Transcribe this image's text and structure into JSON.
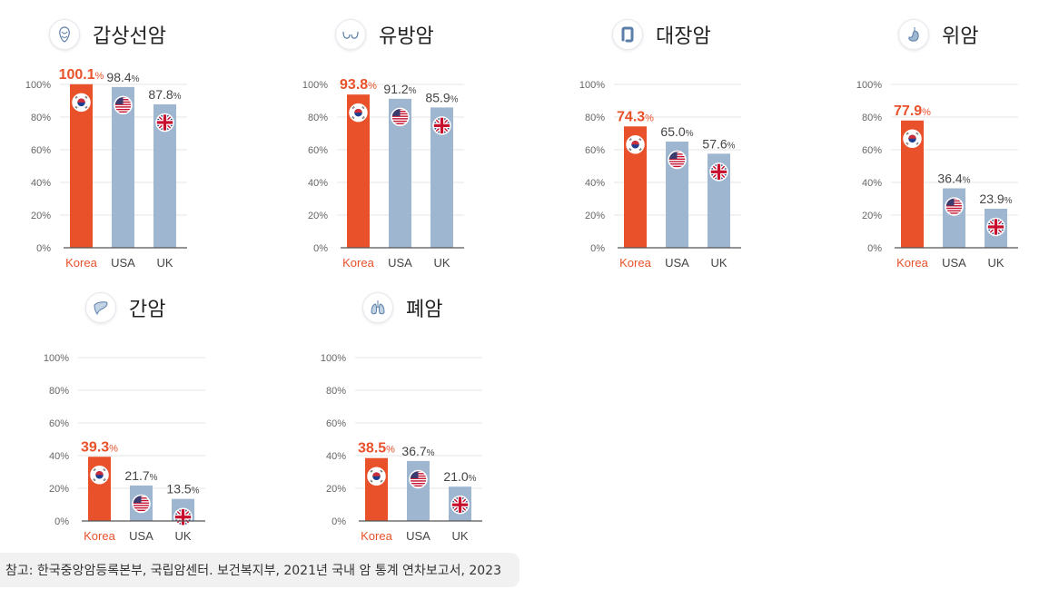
{
  "colors": {
    "korea_bar": "#e8512a",
    "other_bar": "#9fb6d0",
    "grid": "#e5e5e5",
    "axis": "#555555"
  },
  "chart_data": [
    {
      "type": "bar",
      "title": "갑상선암",
      "icon": "thyroid-icon",
      "categories": [
        "Korea",
        "USA",
        "UK"
      ],
      "values": [
        100.1,
        98.4,
        87.8
      ],
      "value_labels": [
        "100.1",
        "98.4",
        "87.8"
      ],
      "unit": "%",
      "ylim": [
        0,
        100
      ],
      "yticks": [
        "0%",
        "20%",
        "40%",
        "60%",
        "80%",
        "100%"
      ],
      "flags": [
        "korea-flag-icon",
        "usa-flag-icon",
        "uk-flag-icon"
      ]
    },
    {
      "type": "bar",
      "title": "유방암",
      "icon": "breast-icon",
      "categories": [
        "Korea",
        "USA",
        "UK"
      ],
      "values": [
        93.8,
        91.2,
        85.9
      ],
      "value_labels": [
        "93.8",
        "91.2",
        "85.9"
      ],
      "unit": "%",
      "ylim": [
        0,
        100
      ],
      "yticks": [
        "0%",
        "20%",
        "40%",
        "60%",
        "80%",
        "100%"
      ],
      "flags": [
        "korea-flag-icon",
        "usa-flag-icon",
        "uk-flag-icon"
      ]
    },
    {
      "type": "bar",
      "title": "대장암",
      "icon": "colon-icon",
      "categories": [
        "Korea",
        "USA",
        "UK"
      ],
      "values": [
        74.3,
        65.0,
        57.6
      ],
      "value_labels": [
        "74.3",
        "65.0",
        "57.6"
      ],
      "unit": "%",
      "ylim": [
        0,
        100
      ],
      "yticks": [
        "0%",
        "20%",
        "40%",
        "60%",
        "80%",
        "100%"
      ],
      "flags": [
        "korea-flag-icon",
        "usa-flag-icon",
        "uk-flag-icon"
      ]
    },
    {
      "type": "bar",
      "title": "위암",
      "icon": "stomach-icon",
      "categories": [
        "Korea",
        "USA",
        "UK"
      ],
      "values": [
        77.9,
        36.4,
        23.9
      ],
      "value_labels": [
        "77.9",
        "36.4",
        "23.9"
      ],
      "unit": "%",
      "ylim": [
        0,
        100
      ],
      "yticks": [
        "0%",
        "20%",
        "40%",
        "60%",
        "80%",
        "100%"
      ],
      "flags": [
        "korea-flag-icon",
        "usa-flag-icon",
        "uk-flag-icon"
      ]
    },
    {
      "type": "bar",
      "title": "간암",
      "icon": "liver-icon",
      "categories": [
        "Korea",
        "USA",
        "UK"
      ],
      "values": [
        39.3,
        21.7,
        13.5
      ],
      "value_labels": [
        "39.3",
        "21.7",
        "13.5"
      ],
      "unit": "%",
      "ylim": [
        0,
        100
      ],
      "yticks": [
        "0%",
        "20%",
        "40%",
        "60%",
        "80%",
        "100%"
      ],
      "flags": [
        "korea-flag-icon",
        "usa-flag-icon",
        "uk-flag-icon"
      ]
    },
    {
      "type": "bar",
      "title": "폐암",
      "icon": "lung-icon",
      "categories": [
        "Korea",
        "USA",
        "UK"
      ],
      "values": [
        38.5,
        36.7,
        21.0
      ],
      "value_labels": [
        "38.5",
        "36.7",
        "21.0"
      ],
      "unit": "%",
      "ylim": [
        0,
        100
      ],
      "yticks": [
        "0%",
        "20%",
        "40%",
        "60%",
        "80%",
        "100%"
      ],
      "flags": [
        "korea-flag-icon",
        "usa-flag-icon",
        "uk-flag-icon"
      ]
    }
  ],
  "source": "참고: 한국중앙암등록본부, 국립암센터. 보건복지부, 2021년 국내 암 통계 연차보고서, 2023"
}
